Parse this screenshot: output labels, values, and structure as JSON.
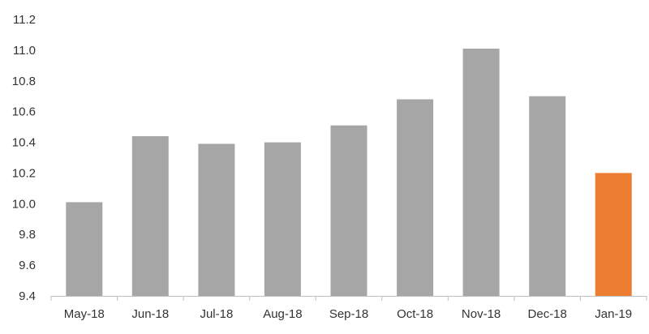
{
  "chart_data": {
    "type": "bar",
    "categories": [
      "May-18",
      "Jun-18",
      "Jul-18",
      "Aug-18",
      "Sep-18",
      "Oct-18",
      "Nov-18",
      "Dec-18",
      "Jan-19"
    ],
    "values": [
      10.01,
      10.44,
      10.39,
      10.4,
      10.51,
      10.68,
      11.01,
      10.7,
      10.2
    ],
    "title": "",
    "xlabel": "",
    "ylabel": "",
    "ylim": [
      9.4,
      11.2
    ],
    "yticks": [
      "9.4",
      "9.6",
      "9.8",
      "10.0",
      "10.2",
      "10.4",
      "10.6",
      "10.8",
      "11.0",
      "11.2"
    ],
    "grid": false,
    "legend": "none",
    "colors": {
      "default_bar": "#a6a6a6",
      "highlight_bar": "#ed7d31",
      "axis": "#bfbfbf",
      "tick_text": "#333333"
    },
    "highlight_category": "Jan-19"
  }
}
